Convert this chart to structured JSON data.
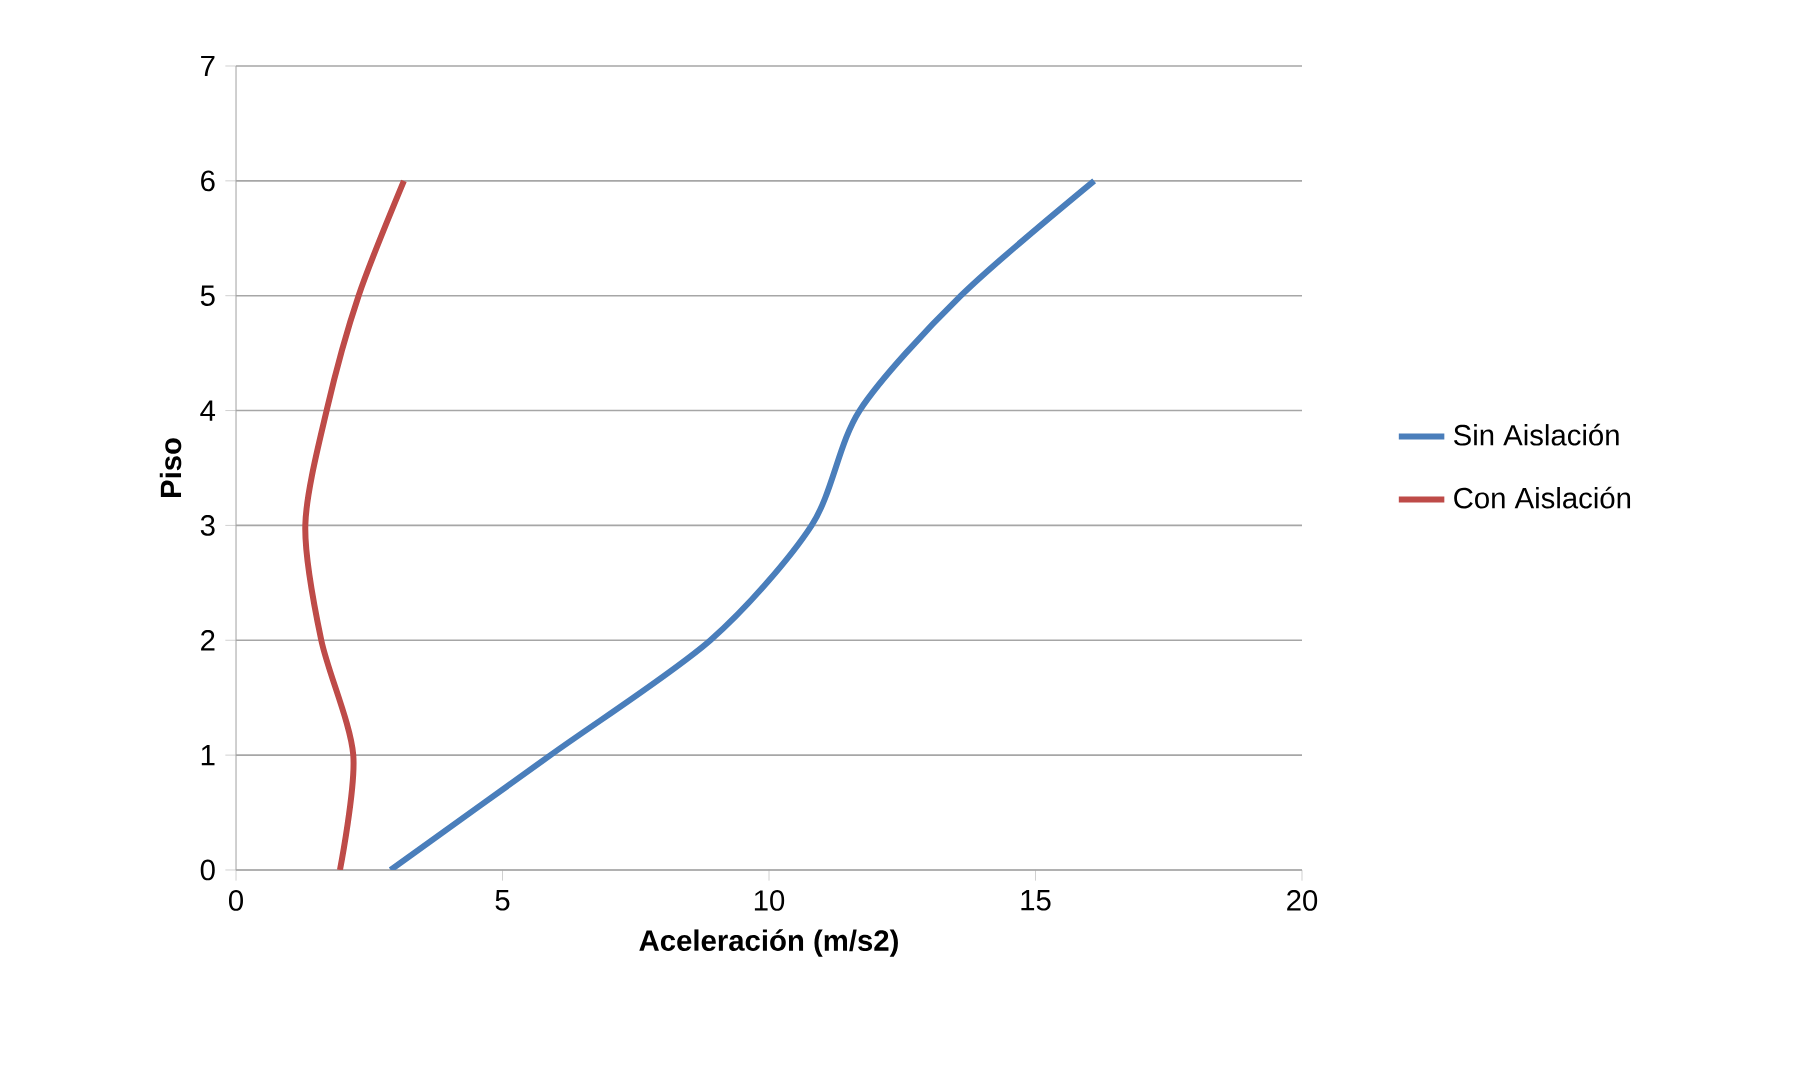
{
  "chart_data": {
    "type": "line",
    "xlabel": "Aceleración (m/s2)",
    "ylabel": "Piso",
    "xlim": [
      0,
      20
    ],
    "xticks": [
      0,
      5,
      10,
      15,
      20
    ],
    "ylim": [
      0,
      7
    ],
    "yticks": [
      0,
      1,
      2,
      3,
      4,
      5,
      6,
      7
    ],
    "grid": "y",
    "legend": "right",
    "line_style": "solid",
    "marker": "none",
    "series": [
      {
        "name": "Sin Aislación",
        "color": "#4a7ebb",
        "x": [
          2.9,
          5.9,
          8.9,
          10.8,
          11.7,
          13.6,
          16.1
        ],
        "values": [
          0,
          1,
          2,
          3,
          4,
          5,
          6
        ]
      },
      {
        "name": "Con Aislación",
        "color": "#be4b48",
        "x": [
          1.95,
          2.2,
          1.6,
          1.3,
          1.7,
          2.3,
          3.15
        ],
        "values": [
          0,
          1,
          2,
          3,
          4,
          5,
          6
        ]
      }
    ]
  }
}
